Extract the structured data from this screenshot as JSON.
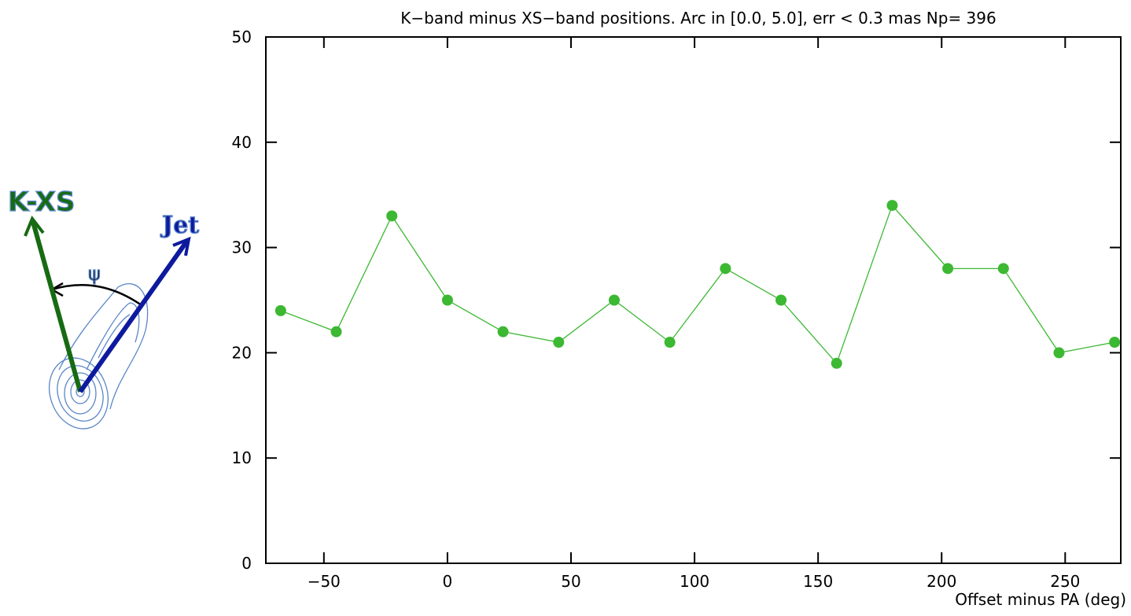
{
  "diagram": {
    "labels": [
      "K-XS",
      "Jet",
      "ψ"
    ]
  },
  "chart_data": {
    "type": "line",
    "title": "K−band minus XS−band positions. Arc in [0.0, 5.0],  err <  0.3 mas Np= 396",
    "x_label": "Offset minus PA (deg)",
    "x": [
      -67.5,
      -45,
      -22.5,
      0,
      22.5,
      45,
      67.5,
      90,
      112.5,
      135,
      157.5,
      180,
      202.5,
      225,
      247.5,
      270
    ],
    "series": [
      {
        "color": "#3cb832",
        "values": [
          24,
          22,
          33,
          25,
          22,
          21,
          25,
          21,
          28,
          25,
          19,
          34,
          28,
          28,
          20,
          21
        ]
      }
    ],
    "xlim": [
      -73.5,
      272.5
    ],
    "ylim": [
      0,
      50
    ],
    "xticks": [
      {
        "value": -50,
        "label": "−50"
      },
      0,
      50,
      100,
      150,
      200,
      250
    ],
    "yticks": [
      0,
      10,
      20,
      30,
      40,
      50
    ]
  }
}
